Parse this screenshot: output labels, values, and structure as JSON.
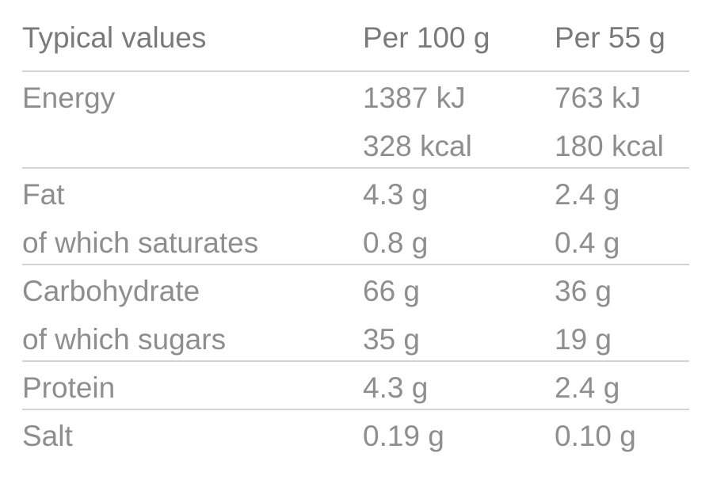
{
  "table": {
    "header": [
      "Typical values",
      "Per 100 g",
      "Per 55 g"
    ],
    "groups": [
      {
        "lines": [
          {
            "label": "Energy",
            "values": [
              "1387 kJ",
              "763 kJ"
            ]
          },
          {
            "values": [
              "328 kcal",
              "180 kcal"
            ]
          }
        ]
      },
      {
        "lines": [
          {
            "label": "Fat",
            "values": [
              "4.3 g",
              "2.4 g"
            ]
          },
          {
            "label": "of which saturates",
            "values": [
              "0.8 g",
              "0.4 g"
            ]
          }
        ]
      },
      {
        "lines": [
          {
            "label": "Carbohydrate",
            "values": [
              "66 g",
              "36 g"
            ]
          },
          {
            "label": "of which sugars",
            "values": [
              "35 g",
              "19 g"
            ]
          }
        ]
      },
      {
        "lines": [
          {
            "label": "Protein",
            "values": [
              "4.3 g",
              "2.4 g"
            ]
          }
        ]
      },
      {
        "lines": [
          {
            "label": "Salt",
            "values": [
              "0.19 g",
              "0.10 g"
            ]
          }
        ]
      }
    ]
  }
}
